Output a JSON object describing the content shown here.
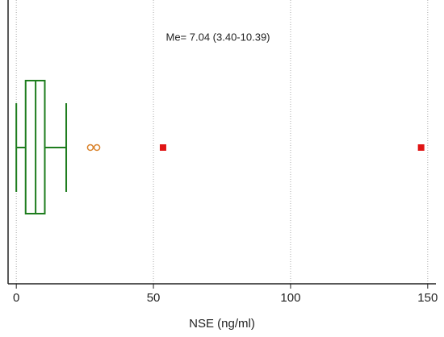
{
  "chart_data": {
    "type": "box",
    "orientation": "horizontal",
    "xlabel": "NSE (ng/ml)",
    "annotation": "Me= 7.04 (3.40-10.39)",
    "box": {
      "min": 0,
      "q1": 3.4,
      "median": 7.04,
      "q3": 10.39,
      "max": 18.2,
      "color": "#1e7d1e"
    },
    "outliers": {
      "values": [
        27,
        29.4
      ],
      "color": "#d9822b"
    },
    "far_outliers": {
      "values": [
        53.5,
        147.6
      ],
      "color": "#e01515"
    },
    "xlim": [
      -3,
      153
    ],
    "xticks": [
      0,
      50,
      100,
      150
    ],
    "grid": true
  }
}
